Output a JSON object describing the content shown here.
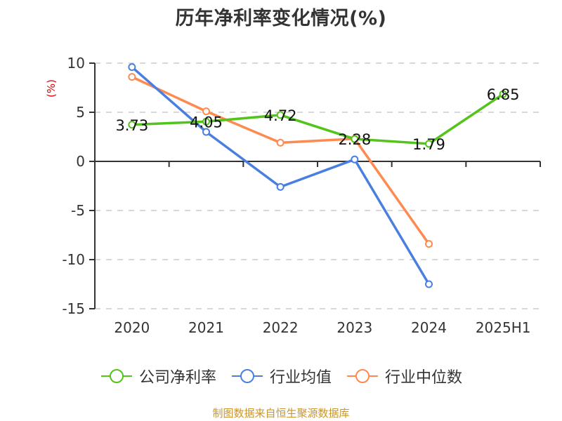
{
  "title": "历年净利率变化情况(%)",
  "y_axis_unit": "(%)",
  "source": "制图数据来自恒生聚源数据库",
  "colors": {
    "company": "#52c41a",
    "industry_mean": "#4a7fe0",
    "industry_median": "#ff8a50",
    "grid": "#cccccc",
    "axis": "#333333",
    "unit": "#e60000",
    "source": "#c8952e"
  },
  "legend": [
    {
      "label": "公司净利率",
      "color": "#52c41a"
    },
    {
      "label": "行业均值",
      "color": "#4a7fe0"
    },
    {
      "label": "行业中位数",
      "color": "#ff8a50"
    }
  ],
  "chart_data": {
    "type": "line",
    "title": "历年净利率变化情况(%)",
    "xlabel": "",
    "ylabel": "(%)",
    "categories": [
      "2020",
      "2021",
      "2022",
      "2023",
      "2024",
      "2025H1"
    ],
    "ylim": [
      -15,
      10
    ],
    "yticks": [
      10,
      5,
      0,
      -5,
      -10,
      -15
    ],
    "grid": true,
    "legend_position": "bottom",
    "series": [
      {
        "name": "公司净利率",
        "values": [
          3.73,
          4.05,
          4.72,
          2.28,
          1.79,
          6.85
        ],
        "labels": [
          "3.73",
          "4.05",
          "4.72",
          "2.28",
          "1.79",
          "6.85"
        ]
      },
      {
        "name": "行业均值",
        "values": [
          9.6,
          3.0,
          -2.6,
          0.2,
          -12.5,
          null
        ]
      },
      {
        "name": "行业中位数",
        "values": [
          8.6,
          5.1,
          1.9,
          2.3,
          -8.4,
          null
        ]
      }
    ]
  }
}
